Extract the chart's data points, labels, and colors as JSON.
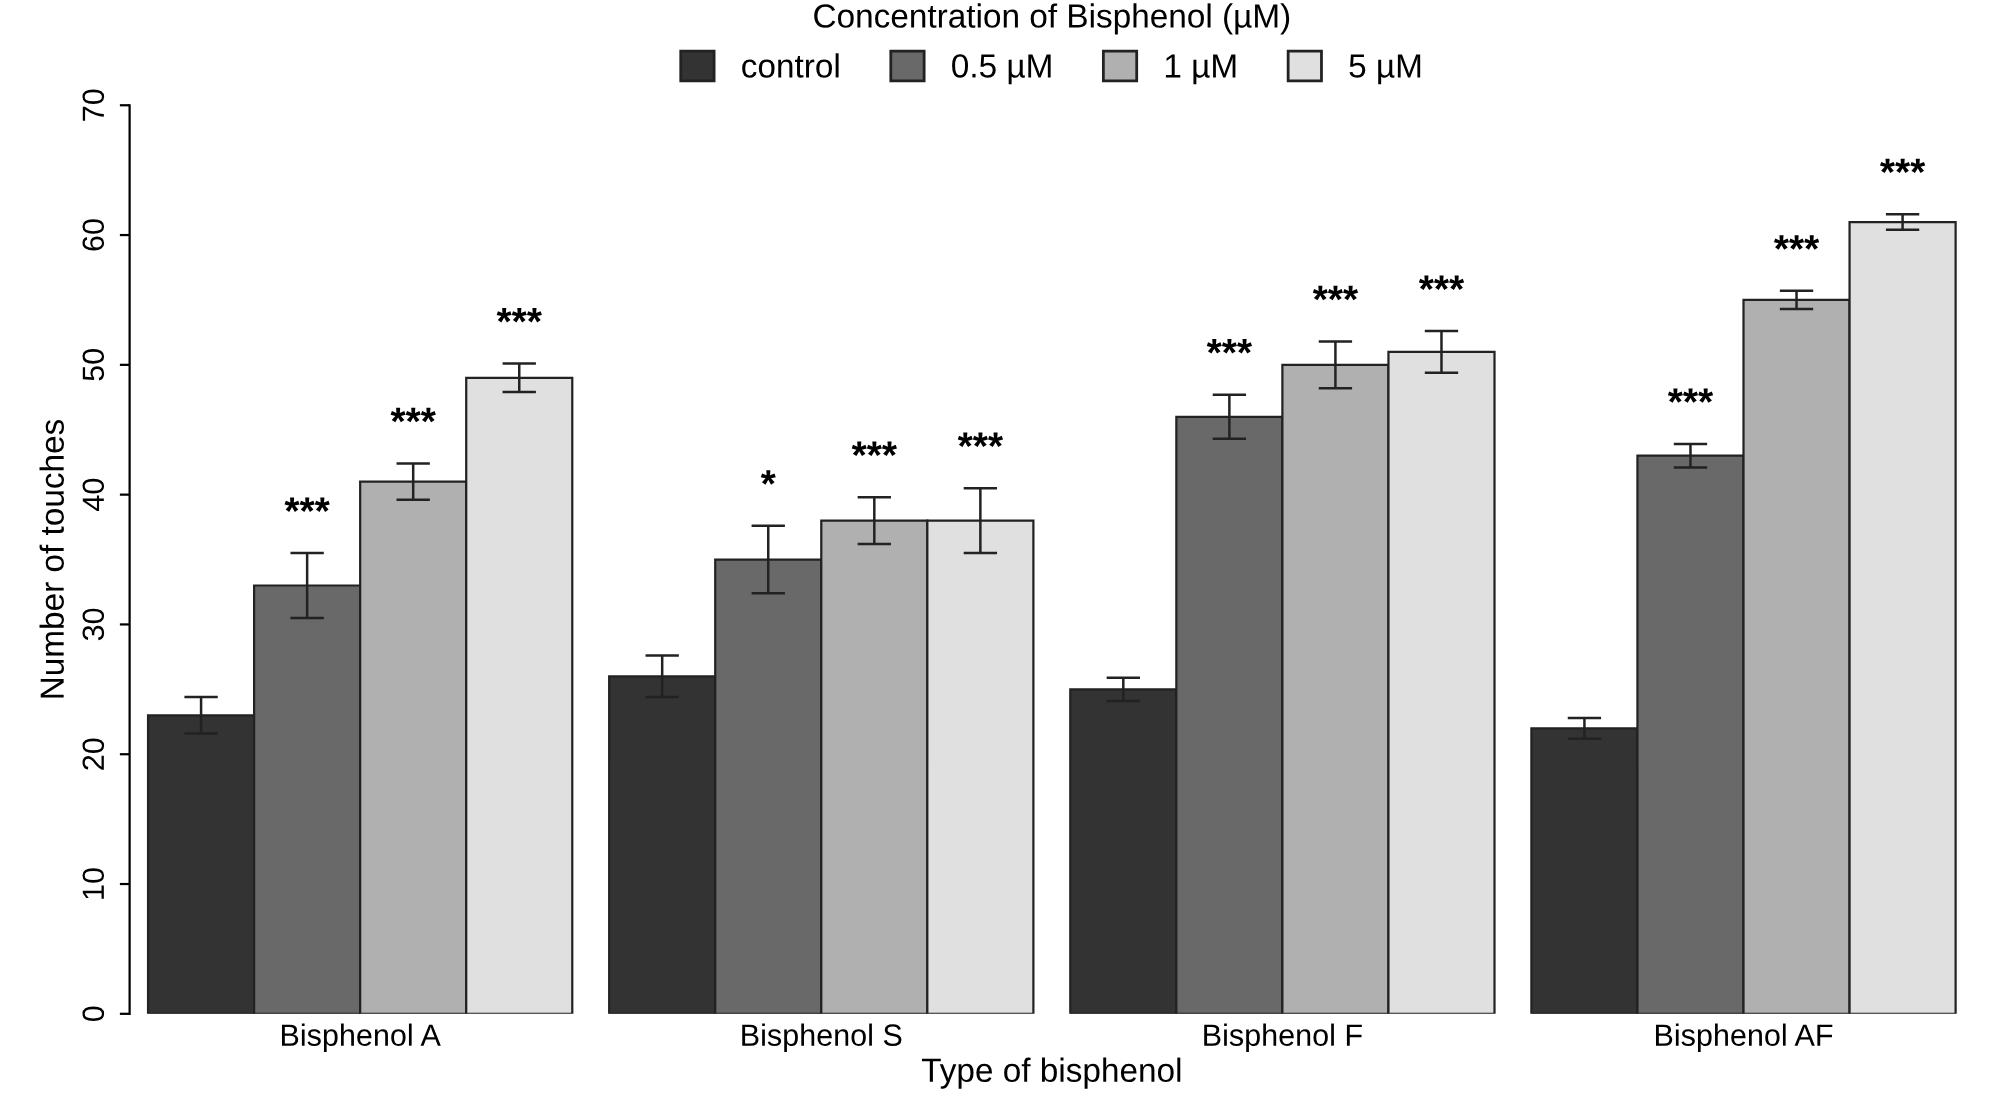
{
  "chart_data": {
    "type": "bar",
    "xlabel": "Type of bisphenol",
    "ylabel": "Number of touches",
    "legend_title": "Concentration of Bisphenol (µM)",
    "categories": [
      "Bisphenol A",
      "Bisphenol S",
      "Bisphenol F",
      "Bisphenol AF"
    ],
    "series": [
      {
        "name": "control",
        "color": "#333333",
        "values": [
          23,
          26,
          25,
          22
        ],
        "errors": [
          1.4,
          1.6,
          0.9,
          0.8
        ]
      },
      {
        "name": "0.5 µM",
        "color": "#696969",
        "values": [
          33,
          35,
          46,
          43
        ],
        "errors": [
          2.5,
          2.6,
          1.7,
          0.9
        ],
        "value_labels": [
          "***",
          "*",
          "***",
          "***"
        ]
      },
      {
        "name": "1 µM",
        "color": "#b0b0b0",
        "values": [
          41,
          38,
          50,
          55
        ],
        "errors": [
          1.4,
          1.8,
          1.8,
          0.7
        ],
        "value_labels": [
          "***",
          "***",
          "***",
          "***"
        ]
      },
      {
        "name": "5 µM",
        "color": "#e0e0e0",
        "values": [
          49,
          38,
          51,
          61
        ],
        "errors": [
          1.1,
          2.5,
          1.6,
          0.6
        ],
        "value_labels": [
          "***",
          "***",
          "***",
          "***"
        ]
      }
    ],
    "ylim": [
      0,
      70
    ],
    "yticks": [
      0,
      10,
      20,
      30,
      40,
      50,
      60,
      70
    ],
    "grid": false,
    "legend": "top"
  }
}
